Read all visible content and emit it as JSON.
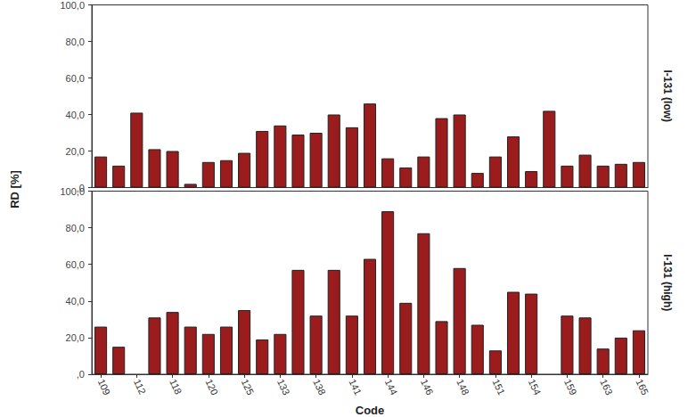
{
  "chart_data": [
    {
      "type": "bar",
      "title": "I-131 (low)",
      "y_label": "RD [%]",
      "tick_labels": "y",
      "grid": false,
      "color": "#9b1c1c",
      "categories": [
        "109",
        null,
        "112",
        null,
        "118",
        null,
        "120",
        null,
        "125",
        null,
        "133",
        null,
        "138",
        null,
        "141",
        null,
        "144",
        null,
        "146",
        null,
        "148",
        null,
        "151",
        null,
        "154",
        null,
        "159",
        null,
        "163",
        null,
        "165"
      ],
      "values": [
        17,
        12,
        41,
        21,
        20,
        2,
        14,
        15,
        19,
        31,
        34,
        29,
        30,
        40,
        33,
        46,
        16,
        11,
        17,
        38,
        40,
        8,
        17,
        28,
        9,
        42,
        12,
        18,
        12,
        13,
        14
      ],
      "ylim": [
        0,
        100
      ],
      "yticks": [
        {
          "value": 0,
          "label": ",0"
        },
        {
          "value": 20,
          "label": "20,0"
        },
        {
          "value": 40,
          "label": "40,0"
        },
        {
          "value": 60,
          "label": "60,0"
        },
        {
          "value": 80,
          "label": "80,0"
        },
        {
          "value": 100,
          "label": "100,0"
        }
      ]
    },
    {
      "type": "bar",
      "title": "I-131 (high)",
      "x_label": "Code",
      "grid": false,
      "color": "#9b1c1c",
      "categories": [
        "109",
        null,
        "112",
        null,
        "118",
        null,
        "120",
        null,
        "125",
        null,
        "133",
        null,
        "138",
        null,
        "141",
        null,
        "144",
        null,
        "146",
        null,
        "148",
        null,
        "151",
        null,
        "154",
        null,
        "159",
        null,
        "163",
        null,
        "165"
      ],
      "values": [
        26,
        15,
        null,
        31,
        34,
        26,
        22,
        26,
        35,
        19,
        22,
        57,
        32,
        57,
        32,
        63,
        89,
        39,
        77,
        29,
        58,
        27,
        13,
        45,
        44,
        null,
        32,
        31,
        14,
        20,
        24
      ],
      "ylim": [
        0,
        100
      ],
      "yticks": [
        {
          "value": 0,
          "label": ",0"
        },
        {
          "value": 20,
          "label": "20,0"
        },
        {
          "value": 40,
          "label": "40,0"
        },
        {
          "value": 60,
          "label": "60,0"
        },
        {
          "value": 80,
          "label": "80,0"
        },
        {
          "value": 100,
          "label": "100,0"
        }
      ]
    }
  ]
}
